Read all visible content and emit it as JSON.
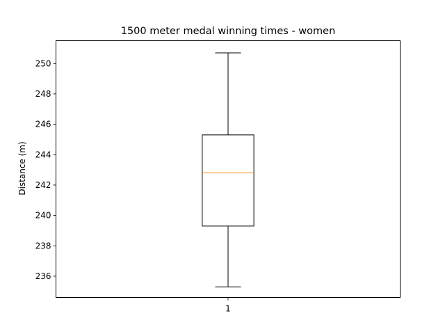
{
  "chart_data": {
    "type": "box",
    "title": "1500 meter medal winning times - women",
    "xlabel": "",
    "ylabel": "Distance (m)",
    "categories": [
      "1"
    ],
    "ylim": [
      234.6,
      251.5
    ],
    "yticks": [
      236,
      238,
      240,
      242,
      244,
      246,
      248,
      250
    ],
    "grid": false,
    "boxes": [
      {
        "category": "1",
        "whisker_low": 235.3,
        "q1": 239.3,
        "median": 242.8,
        "q3": 245.3,
        "whisker_high": 250.7
      }
    ],
    "colors": {
      "box": "#000000",
      "median": "#ff7f0e"
    }
  }
}
